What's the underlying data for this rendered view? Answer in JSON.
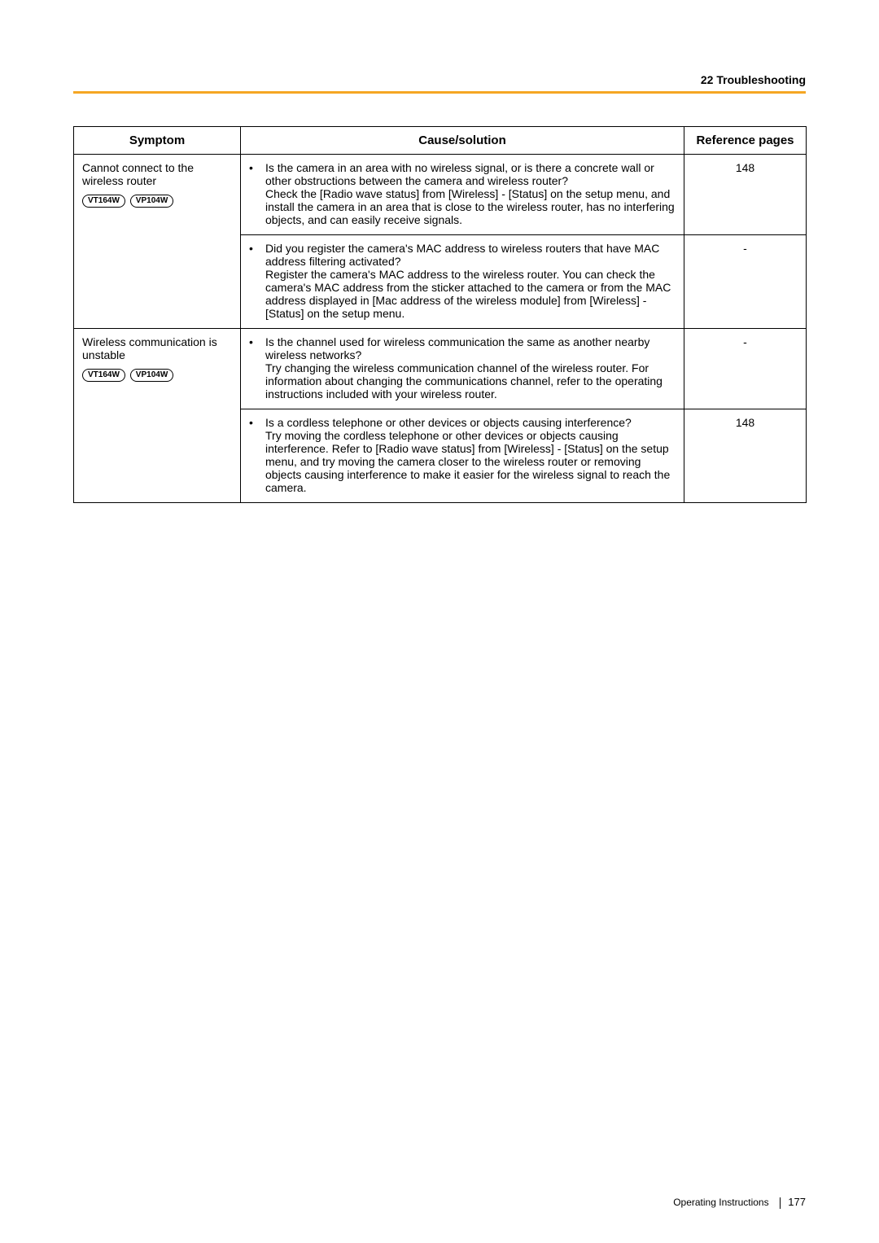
{
  "header": {
    "section": "22 Troubleshooting"
  },
  "table": {
    "columns": {
      "symptom": "Symptom",
      "cause": "Cause/solution",
      "ref": "Reference pages"
    },
    "groups": [
      {
        "symptom": "Cannot connect to the wireless router",
        "models": [
          "VT164W",
          "VP104W"
        ],
        "rows": [
          {
            "cause": "Is the camera in an area with no wireless signal, or is there a concrete wall or other obstructions between the camera and wireless router?\nCheck the [Radio wave status] from [Wireless] - [Status] on the setup menu, and install the camera in an area that is close to the wireless router, has no interfering objects, and can easily receive signals.",
            "ref": "148"
          },
          {
            "cause": "Did you register the camera's MAC address to wireless routers that have MAC address filtering activated?\nRegister the camera's MAC address to the wireless router. You can check the camera's MAC address from the sticker attached to the camera or from the MAC address displayed in [Mac address of the wireless module] from [Wireless] - [Status] on the setup menu.",
            "ref": "-"
          }
        ]
      },
      {
        "symptom": "Wireless communication is unstable",
        "models": [
          "VT164W",
          "VP104W"
        ],
        "rows": [
          {
            "cause": "Is the channel used for wireless communication the same as another nearby wireless networks?\nTry changing the wireless communication channel of the wireless router. For information about changing the communications channel, refer to the operating instructions included with your wireless router.",
            "ref": "-"
          },
          {
            "cause": "Is a cordless telephone or other devices or objects causing interference?\nTry moving the cordless telephone or other devices or objects causing interference. Refer to [Radio wave status] from [Wireless] - [Status] on the setup menu, and try moving the camera closer to the wireless router or removing objects causing interference to make it easier for the wireless signal to reach the camera.",
            "ref": "148"
          }
        ]
      }
    ]
  },
  "footer": {
    "label": "Operating Instructions",
    "page": "177"
  }
}
